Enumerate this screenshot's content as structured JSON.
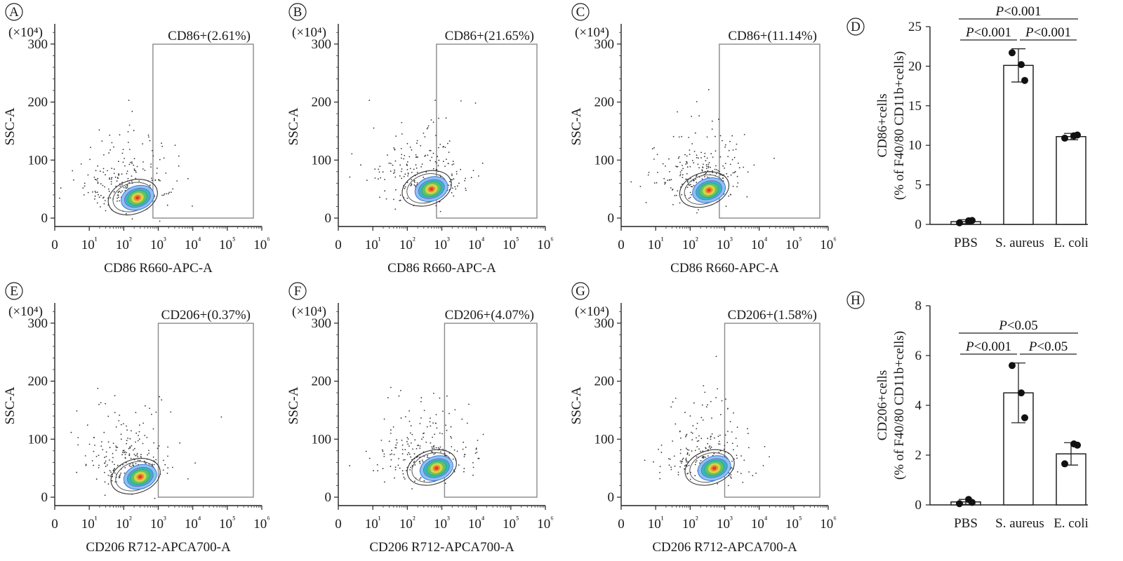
{
  "chart_data": [
    {
      "panel": "A",
      "type": "scatter",
      "xlabel": "CD86 R660-APC-A",
      "ylabel": "SSC-A",
      "y_multiplier": "(×10⁴)",
      "x_ticks": [
        "0",
        "10¹",
        "10²",
        "10³",
        "10⁴",
        "10⁵",
        "10⁶"
      ],
      "y_ticks": [
        0,
        100,
        200,
        300
      ],
      "ylim": [
        0,
        330
      ],
      "gate_label": "CD86+(2.61%)",
      "gate_color": "#2aa198",
      "gate_x_start": 700,
      "population_center": {
        "x": 250,
        "y": 35
      }
    },
    {
      "panel": "B",
      "type": "scatter",
      "xlabel": "CD86 R660-APC-A",
      "ylabel": "SSC-A",
      "y_multiplier": "(×10⁴)",
      "x_ticks": [
        "0",
        "10¹",
        "10²",
        "10³",
        "10⁴",
        "10⁵",
        "10⁶"
      ],
      "y_ticks": [
        0,
        100,
        200,
        300
      ],
      "ylim": [
        0,
        330
      ],
      "gate_label": "CD86+(21.65%)",
      "gate_color": "#2aa198",
      "gate_x_start": 700,
      "population_center": {
        "x": 500,
        "y": 50
      }
    },
    {
      "panel": "C",
      "type": "scatter",
      "xlabel": "CD86 R660-APC-A",
      "ylabel": "SSC-A",
      "y_multiplier": "(×10⁴)",
      "x_ticks": [
        "0",
        "10¹",
        "10²",
        "10³",
        "10⁴",
        "10⁵",
        "10⁶"
      ],
      "y_ticks": [
        0,
        100,
        200,
        300
      ],
      "ylim": [
        0,
        330
      ],
      "gate_label": "CD86+(11.14%)",
      "gate_color": "#2aa198",
      "gate_x_start": 700,
      "population_center": {
        "x": 350,
        "y": 48
      }
    },
    {
      "panel": "D",
      "type": "bar",
      "ylabel_line1": "CD86+cells",
      "ylabel_line2": "(% of F40/80 CD11b+cells)",
      "categories": [
        "PBS",
        "S. aureus",
        "E. coli"
      ],
      "values": [
        0.35,
        20.1,
        11.1
      ],
      "errors": [
        0.25,
        2.1,
        0.4
      ],
      "points": [
        [
          0.2,
          0.45,
          0.5
        ],
        [
          21.7,
          20.2,
          18.2
        ],
        [
          10.9,
          11.2,
          11.3
        ]
      ],
      "ylim": [
        0,
        25
      ],
      "y_ticks": [
        0,
        5,
        10,
        15,
        20,
        25
      ],
      "comparisons": [
        {
          "from": 0,
          "to": 2,
          "label": "P<0.001",
          "level": 2
        },
        {
          "from": 0,
          "to": 1,
          "label": "P<0.001",
          "level": 1
        },
        {
          "from": 1,
          "to": 2,
          "label": "P<0.001",
          "level": 1
        }
      ]
    },
    {
      "panel": "E",
      "type": "scatter",
      "xlabel": "CD206 R712-APCA700-A",
      "ylabel": "SSC-A",
      "y_multiplier": "(×10⁴)",
      "x_ticks": [
        "0",
        "10¹",
        "10²",
        "10³",
        "10⁴",
        "10⁵",
        "10⁶"
      ],
      "y_ticks": [
        0,
        100,
        200,
        300
      ],
      "ylim": [
        0,
        330
      ],
      "gate_label": "CD206+(0.37%)",
      "gate_color": "#555555",
      "gate_x_start": 1000,
      "population_center": {
        "x": 300,
        "y": 35
      }
    },
    {
      "panel": "F",
      "type": "scatter",
      "xlabel": "CD206 R712-APCA700-A",
      "ylabel": "SSC-A",
      "y_multiplier": "(×10⁴)",
      "x_ticks": [
        "0",
        "10¹",
        "10²",
        "10³",
        "10⁴",
        "10⁵",
        "10⁶"
      ],
      "y_ticks": [
        0,
        100,
        200,
        300
      ],
      "ylim": [
        0,
        330
      ],
      "gate_label": "CD206+(4.07%)",
      "gate_color": "#555555",
      "gate_x_start": 1200,
      "population_center": {
        "x": 700,
        "y": 50
      }
    },
    {
      "panel": "G",
      "type": "scatter",
      "xlabel": "CD206 R712-APCA700-A",
      "ylabel": "SSC-A",
      "y_multiplier": "(×10⁴)",
      "x_ticks": [
        "0",
        "10¹",
        "10²",
        "10³",
        "10⁴",
        "10⁵",
        "10⁶"
      ],
      "y_ticks": [
        0,
        100,
        200,
        300
      ],
      "ylim": [
        0,
        330
      ],
      "gate_label": "CD206+(1.58%)",
      "gate_color": "#555555",
      "gate_x_start": 1000,
      "population_center": {
        "x": 500,
        "y": 50
      }
    },
    {
      "panel": "H",
      "type": "bar",
      "ylabel_line1": "CD206+cells",
      "ylabel_line2": "(% of F40/80 CD11b+cells)",
      "categories": [
        "PBS",
        "S. aureus",
        "E. coli"
      ],
      "values": [
        0.12,
        4.5,
        2.05
      ],
      "errors": [
        0.1,
        1.2,
        0.45
      ],
      "points": [
        [
          0.05,
          0.22,
          0.1
        ],
        [
          5.6,
          4.5,
          3.5
        ],
        [
          1.65,
          2.45,
          2.4
        ]
      ],
      "ylim": [
        0,
        8
      ],
      "y_ticks": [
        0,
        2,
        4,
        6,
        8
      ],
      "comparisons": [
        {
          "from": 0,
          "to": 2,
          "label": "P<0.05",
          "level": 2
        },
        {
          "from": 0,
          "to": 1,
          "label": "P<0.001",
          "level": 1
        },
        {
          "from": 1,
          "to": 2,
          "label": "P<0.05",
          "level": 1
        }
      ]
    }
  ]
}
